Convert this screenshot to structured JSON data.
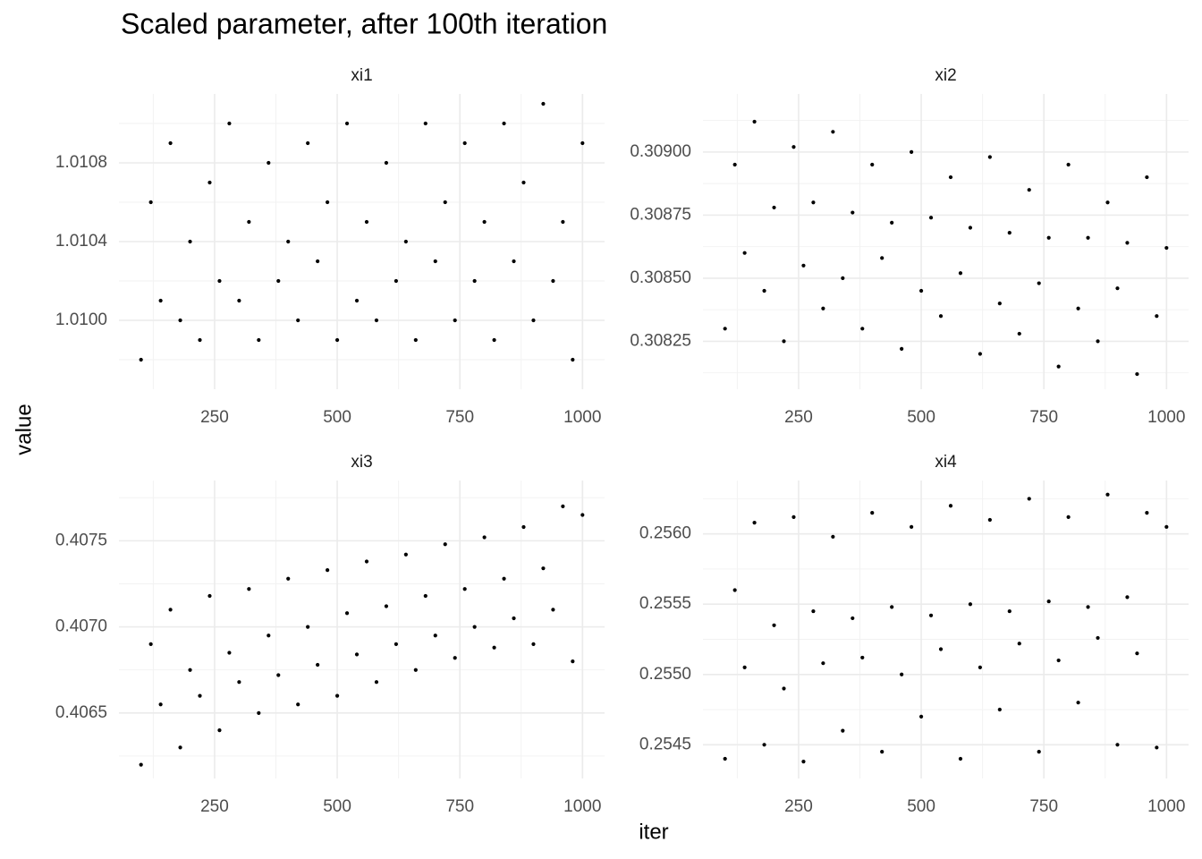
{
  "title": "Scaled parameter, after 100th iteration",
  "x_label": "iter",
  "y_label": "value",
  "chart_data": [
    {
      "type": "scatter",
      "title": "xi1",
      "color": "#000000",
      "grid": true,
      "x": [
        100,
        120,
        140,
        160,
        180,
        200,
        220,
        240,
        260,
        280,
        300,
        320,
        340,
        360,
        380,
        400,
        420,
        440,
        460,
        480,
        500,
        520,
        540,
        560,
        580,
        600,
        620,
        640,
        660,
        680,
        700,
        720,
        740,
        760,
        780,
        800,
        820,
        840,
        860,
        880,
        900,
        920,
        940,
        960,
        980,
        1000
      ],
      "values": [
        1.0098,
        1.0106,
        1.0101,
        1.0109,
        1.01,
        1.0104,
        1.0099,
        1.0107,
        1.0102,
        1.011,
        1.0101,
        1.0105,
        1.0099,
        1.0108,
        1.0102,
        1.0104,
        1.01,
        1.0109,
        1.0103,
        1.0106,
        1.0099,
        1.011,
        1.0101,
        1.0105,
        1.01,
        1.0108,
        1.0102,
        1.0104,
        1.0099,
        1.011,
        1.0103,
        1.0106,
        1.01,
        1.0109,
        1.0102,
        1.0105,
        1.0099,
        1.011,
        1.0103,
        1.0107,
        1.01,
        1.0111,
        1.0102,
        1.0105,
        1.0098,
        1.0109
      ],
      "xlim": [
        55,
        1045
      ],
      "xticks": [
        250,
        500,
        750,
        1000
      ],
      "ylim": [
        1.00965,
        1.01115
      ],
      "yticks": [
        {
          "value": 1.01,
          "label": "1.0100"
        },
        1.0104,
        1.0108
      ]
    },
    {
      "type": "scatter",
      "title": "xi2",
      "color": "#000000",
      "grid": true,
      "x": [
        100,
        120,
        140,
        160,
        180,
        200,
        220,
        240,
        260,
        280,
        300,
        320,
        340,
        360,
        380,
        400,
        420,
        440,
        460,
        480,
        500,
        520,
        540,
        560,
        580,
        600,
        620,
        640,
        660,
        680,
        700,
        720,
        740,
        760,
        780,
        800,
        820,
        840,
        860,
        880,
        900,
        920,
        940,
        960,
        980,
        1000
      ],
      "values": [
        0.3083,
        0.30895,
        0.3086,
        0.30912,
        0.30845,
        0.30878,
        0.30825,
        0.30902,
        0.30855,
        0.3088,
        0.30838,
        0.30908,
        0.3085,
        0.30876,
        0.3083,
        0.30895,
        0.30858,
        0.30872,
        0.30822,
        0.309,
        0.30845,
        0.30874,
        0.30835,
        0.3089,
        0.30852,
        0.3087,
        0.3082,
        0.30898,
        0.3084,
        0.30868,
        0.30828,
        0.30885,
        0.30848,
        0.30866,
        0.30815,
        0.30895,
        0.30838,
        0.30866,
        0.30825,
        0.3088,
        0.30846,
        0.30864,
        0.30812,
        0.3089,
        0.30835,
        0.30862
      ],
      "xlim": [
        55,
        1045
      ],
      "xticks": [
        250,
        500,
        750,
        1000
      ],
      "ylim": [
        0.30806,
        0.30923
      ],
      "yticks": [
        0.30825,
        {
          "value": 0.3085,
          "label": "0.30850"
        },
        0.30875,
        {
          "value": 0.309,
          "label": "0.30900"
        }
      ]
    },
    {
      "type": "scatter",
      "title": "xi3",
      "color": "#000000",
      "grid": true,
      "x": [
        100,
        120,
        140,
        160,
        180,
        200,
        220,
        240,
        260,
        280,
        300,
        320,
        340,
        360,
        380,
        400,
        420,
        440,
        460,
        480,
        500,
        520,
        540,
        560,
        580,
        600,
        620,
        640,
        660,
        680,
        700,
        720,
        740,
        760,
        780,
        800,
        820,
        840,
        860,
        880,
        900,
        920,
        940,
        960,
        980,
        1000
      ],
      "values": [
        0.4062,
        0.4069,
        0.40655,
        0.4071,
        0.4063,
        0.40675,
        0.4066,
        0.40718,
        0.4064,
        0.40685,
        0.40668,
        0.40722,
        0.4065,
        0.40695,
        0.40672,
        0.40728,
        0.40655,
        0.407,
        0.40678,
        0.40733,
        0.4066,
        0.40708,
        0.40684,
        0.40738,
        0.40668,
        0.40712,
        0.4069,
        0.40742,
        0.40675,
        0.40718,
        0.40695,
        0.40748,
        0.40682,
        0.40722,
        0.407,
        0.40752,
        0.40688,
        0.40728,
        0.40705,
        0.40758,
        0.4069,
        0.40734,
        0.4071,
        0.4077,
        0.4068,
        0.40765
      ],
      "xlim": [
        55,
        1045
      ],
      "xticks": [
        250,
        500,
        750,
        1000
      ],
      "ylim": [
        0.40612,
        0.40785
      ],
      "yticks": [
        0.4065,
        {
          "value": 0.407,
          "label": "0.4070"
        },
        0.4075
      ]
    },
    {
      "type": "scatter",
      "title": "xi4",
      "color": "#000000",
      "grid": true,
      "x": [
        100,
        120,
        140,
        160,
        180,
        200,
        220,
        240,
        260,
        280,
        300,
        320,
        340,
        360,
        380,
        400,
        420,
        440,
        460,
        480,
        500,
        520,
        540,
        560,
        580,
        600,
        620,
        640,
        660,
        680,
        700,
        720,
        740,
        760,
        780,
        800,
        820,
        840,
        860,
        880,
        900,
        920,
        940,
        960,
        980,
        1000
      ],
      "values": [
        0.2544,
        0.2556,
        0.25505,
        0.25608,
        0.2545,
        0.25535,
        0.2549,
        0.25612,
        0.25438,
        0.25545,
        0.25508,
        0.25598,
        0.2546,
        0.2554,
        0.25512,
        0.25615,
        0.25445,
        0.25548,
        0.255,
        0.25605,
        0.2547,
        0.25542,
        0.25518,
        0.2562,
        0.2544,
        0.2555,
        0.25505,
        0.2561,
        0.25475,
        0.25545,
        0.25522,
        0.25625,
        0.25445,
        0.25552,
        0.2551,
        0.25612,
        0.2548,
        0.25548,
        0.25526,
        0.25628,
        0.2545,
        0.25555,
        0.25515,
        0.25615,
        0.25448,
        0.25605
      ],
      "xlim": [
        55,
        1045
      ],
      "xticks": [
        250,
        500,
        750,
        1000
      ],
      "ylim": [
        0.25426,
        0.25638
      ],
      "yticks": [
        0.2545,
        {
          "value": 0.255,
          "label": "0.2550"
        },
        0.2555,
        {
          "value": 0.256,
          "label": "0.2560"
        }
      ]
    }
  ]
}
